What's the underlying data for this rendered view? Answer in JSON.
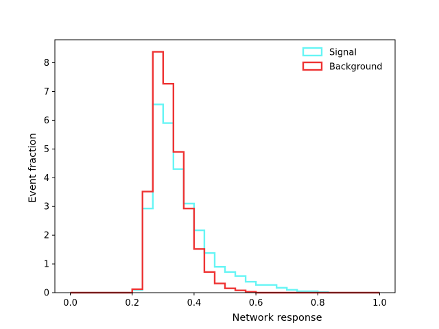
{
  "chart_data": {
    "type": "histogram",
    "title": "",
    "xlabel": "Network response",
    "ylabel": "Event fraction",
    "xlim": [
      -0.05,
      1.05
    ],
    "ylim": [
      0,
      8.8
    ],
    "xticks": [
      0.0,
      0.2,
      0.4,
      0.6,
      0.8,
      1.0
    ],
    "xtick_labels": [
      "0.0",
      "0.2",
      "0.4",
      "0.6",
      "0.8",
      "1.0"
    ],
    "yticks": [
      0,
      1,
      2,
      3,
      4,
      5,
      6,
      7,
      8
    ],
    "ytick_labels": [
      "0",
      "1",
      "2",
      "3",
      "4",
      "5",
      "6",
      "7",
      "8"
    ],
    "grid": false,
    "legend_position": "top-right",
    "bin_edges": [
      0.0,
      0.0333,
      0.0667,
      0.1,
      0.1333,
      0.1667,
      0.2,
      0.2333,
      0.2667,
      0.3,
      0.3333,
      0.3667,
      0.4,
      0.4333,
      0.4667,
      0.5,
      0.5333,
      0.5667,
      0.6,
      0.6333,
      0.6667,
      0.7,
      0.7333,
      0.7667,
      0.8,
      0.8333,
      0.8667,
      0.9,
      0.9333,
      0.9667,
      1.0
    ],
    "series": [
      {
        "name": "Signal",
        "color": "#66f5f5",
        "values": [
          0,
          0,
          0,
          0,
          0,
          0,
          0.1,
          2.93,
          6.55,
          5.9,
          4.3,
          3.1,
          2.17,
          1.38,
          0.9,
          0.72,
          0.58,
          0.38,
          0.27,
          0.27,
          0.17,
          0.1,
          0.05,
          0.05,
          0.02,
          0,
          0,
          0,
          0,
          0
        ]
      },
      {
        "name": "Background",
        "color": "#ee3333",
        "values": [
          0,
          0,
          0,
          0,
          0,
          0,
          0.12,
          3.52,
          8.38,
          7.27,
          4.9,
          2.93,
          1.52,
          0.72,
          0.32,
          0.15,
          0.08,
          0.03,
          0,
          0,
          0,
          0,
          0,
          0,
          0,
          0,
          0,
          0,
          0,
          0
        ]
      }
    ]
  }
}
